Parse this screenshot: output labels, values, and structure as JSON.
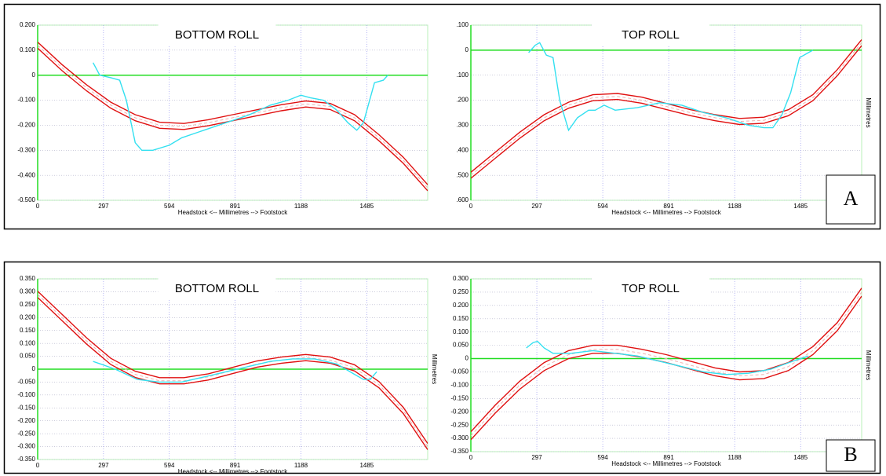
{
  "panels": [
    {
      "label": "A"
    },
    {
      "label": "B"
    }
  ],
  "chart_data": [
    {
      "type": "line",
      "title": "BOTTOM ROLL",
      "xlabel": "Headstock <-- Millimetres --> Footstock",
      "ylabel": null,
      "xlim": [
        0,
        1760
      ],
      "xticks": [
        0,
        297,
        594,
        891,
        1188,
        1485
      ],
      "ylim": [
        -0.5,
        0.2
      ],
      "yticks": [
        {
          "value": 0.2,
          "label": "0.200"
        },
        {
          "value": 0.1,
          "label": "0.100"
        },
        0,
        {
          "value": -0.1,
          "label": "-0.100"
        },
        {
          "value": -0.2,
          "label": "-0.200"
        },
        {
          "value": -0.3,
          "label": "-0.300"
        },
        {
          "value": -0.4,
          "label": "-0.400"
        },
        {
          "value": -0.5,
          "label": "-0.500"
        }
      ],
      "grid": true,
      "zero_line_color": "#22dd22",
      "series": [
        {
          "color": "#e01010",
          "x": [
            0,
            110,
            220,
            330,
            440,
            550,
            660,
            770,
            880,
            990,
            1100,
            1210,
            1320,
            1430,
            1540,
            1650,
            1760
          ],
          "values": [
            0.132,
            0.042,
            -0.038,
            -0.108,
            -0.158,
            -0.188,
            -0.193,
            -0.178,
            -0.158,
            -0.138,
            -0.118,
            -0.103,
            -0.113,
            -0.158,
            -0.238,
            -0.328,
            -0.438
          ]
        },
        {
          "color": "#e01010",
          "x": [
            0,
            110,
            220,
            330,
            440,
            550,
            660,
            770,
            880,
            990,
            1100,
            1210,
            1320,
            1430,
            1540,
            1650,
            1760
          ],
          "values": [
            0.108,
            0.018,
            -0.062,
            -0.132,
            -0.182,
            -0.212,
            -0.217,
            -0.202,
            -0.182,
            -0.162,
            -0.142,
            -0.127,
            -0.137,
            -0.182,
            -0.262,
            -0.352,
            -0.462
          ]
        },
        {
          "color": "#f0b0b0",
          "dashed": true,
          "x": [
            0,
            110,
            220,
            330,
            440,
            550,
            660,
            770,
            880,
            990,
            1100,
            1210,
            1320,
            1430,
            1540,
            1650,
            1760
          ],
          "values": [
            0.12,
            0.03,
            -0.05,
            -0.12,
            -0.17,
            -0.2,
            -0.205,
            -0.19,
            -0.17,
            -0.15,
            -0.13,
            -0.115,
            -0.125,
            -0.17,
            -0.25,
            -0.34,
            -0.45
          ]
        },
        {
          "color": "#33e0f0",
          "x": [
            250,
            280,
            330,
            370,
            400,
            440,
            470,
            520,
            594,
            650,
            750,
            850,
            950,
            1050,
            1130,
            1188,
            1230,
            1290,
            1350,
            1400,
            1440,
            1470,
            1520,
            1560,
            1580
          ],
          "values": [
            0.05,
            0,
            -0.01,
            -0.02,
            -0.1,
            -0.27,
            -0.3,
            -0.3,
            -0.28,
            -0.25,
            -0.22,
            -0.19,
            -0.16,
            -0.12,
            -0.1,
            -0.08,
            -0.09,
            -0.1,
            -0.14,
            -0.19,
            -0.22,
            -0.19,
            -0.03,
            -0.02,
            0
          ]
        }
      ]
    },
    {
      "type": "line",
      "title": "TOP ROLL",
      "xlabel": "Headstock <-- Millimetres --> Footstock",
      "ylabel": "Millimetres",
      "xlim": [
        0,
        1760
      ],
      "xticks": [
        0,
        297,
        594,
        891,
        1188,
        1485
      ],
      "ylim": [
        -0.6,
        0.1
      ],
      "yticks": [
        {
          "value": 0.1,
          "label": ".100"
        },
        0,
        {
          "value": -0.1,
          "label": ".100"
        },
        {
          "value": -0.2,
          "label": ".200"
        },
        {
          "value": -0.3,
          "label": ".300"
        },
        {
          "value": -0.4,
          "label": ".400"
        },
        {
          "value": -0.5,
          "label": ".500"
        },
        {
          "value": -0.6,
          "label": ".600"
        }
      ],
      "grid": true,
      "zero_line_color": "#22dd22",
      "series": [
        {
          "color": "#e01010",
          "x": [
            0,
            110,
            220,
            330,
            440,
            550,
            660,
            770,
            880,
            990,
            1100,
            1210,
            1320,
            1430,
            1540,
            1650,
            1760
          ],
          "values": [
            -0.488,
            -0.408,
            -0.328,
            -0.258,
            -0.208,
            -0.178,
            -0.173,
            -0.188,
            -0.213,
            -0.238,
            -0.258,
            -0.273,
            -0.268,
            -0.238,
            -0.178,
            -0.078,
            0.042
          ]
        },
        {
          "color": "#e01010",
          "x": [
            0,
            110,
            220,
            330,
            440,
            550,
            660,
            770,
            880,
            990,
            1100,
            1210,
            1320,
            1430,
            1540,
            1650,
            1760
          ],
          "values": [
            -0.512,
            -0.432,
            -0.352,
            -0.282,
            -0.232,
            -0.202,
            -0.197,
            -0.212,
            -0.237,
            -0.262,
            -0.282,
            -0.297,
            -0.292,
            -0.262,
            -0.202,
            -0.102,
            0.018
          ]
        },
        {
          "color": "#f0b0b0",
          "dashed": true,
          "x": [
            0,
            110,
            220,
            330,
            440,
            550,
            660,
            770,
            880,
            990,
            1100,
            1210,
            1320,
            1430,
            1540,
            1650,
            1760
          ],
          "values": [
            -0.5,
            -0.42,
            -0.34,
            -0.27,
            -0.22,
            -0.19,
            -0.185,
            -0.2,
            -0.225,
            -0.25,
            -0.27,
            -0.285,
            -0.28,
            -0.25,
            -0.19,
            -0.09,
            0.03
          ]
        },
        {
          "color": "#33e0f0",
          "x": [
            260,
            290,
            310,
            340,
            370,
            400,
            440,
            480,
            530,
            560,
            600,
            650,
            750,
            850,
            950,
            1050,
            1150,
            1250,
            1320,
            1360,
            1400,
            1440,
            1480,
            1520,
            1540
          ],
          "values": [
            -0.01,
            0.02,
            0.03,
            -0.02,
            -0.03,
            -0.2,
            -0.32,
            -0.27,
            -0.24,
            -0.24,
            -0.22,
            -0.24,
            -0.23,
            -0.21,
            -0.22,
            -0.25,
            -0.27,
            -0.3,
            -0.31,
            -0.31,
            -0.26,
            -0.17,
            -0.03,
            -0.01,
            0
          ]
        }
      ]
    },
    {
      "type": "line",
      "title": "BOTTOM ROLL",
      "xlabel": "Headstock <-- Millimetres --> Footstock",
      "ylabel": "Millimetres",
      "xlim": [
        0,
        1760
      ],
      "xticks": [
        0,
        297,
        594,
        891,
        1188,
        1485
      ],
      "ylim": [
        -0.35,
        0.35
      ],
      "yticks": [
        {
          "value": 0.35,
          "label": "0.350"
        },
        {
          "value": 0.3,
          "label": "0.300"
        },
        {
          "value": 0.25,
          "label": "0.250"
        },
        {
          "value": 0.2,
          "label": "0.200"
        },
        {
          "value": 0.15,
          "label": "0.150"
        },
        {
          "value": 0.1,
          "label": "0.100"
        },
        {
          "value": 0.05,
          "label": "0.050"
        },
        0,
        {
          "value": -0.05,
          "label": "-0.050"
        },
        {
          "value": -0.1,
          "label": "-0.100"
        },
        {
          "value": -0.15,
          "label": "-0.150"
        },
        {
          "value": -0.2,
          "label": "-0.200"
        },
        {
          "value": -0.25,
          "label": "-0.250"
        },
        {
          "value": -0.3,
          "label": "-0.300"
        },
        {
          "value": -0.35,
          "label": "-0.350"
        }
      ],
      "grid": true,
      "zero_line_color": "#22dd22",
      "series": [
        {
          "color": "#e01010",
          "x": [
            0,
            110,
            220,
            330,
            440,
            550,
            660,
            770,
            880,
            990,
            1100,
            1210,
            1320,
            1430,
            1540,
            1650,
            1760
          ],
          "values": [
            0.302,
            0.212,
            0.122,
            0.042,
            -0.008,
            -0.033,
            -0.033,
            -0.018,
            0.007,
            0.032,
            0.047,
            0.057,
            0.047,
            0.017,
            -0.048,
            -0.148,
            -0.288
          ]
        },
        {
          "color": "#e01010",
          "x": [
            0,
            110,
            220,
            330,
            440,
            550,
            660,
            770,
            880,
            990,
            1100,
            1210,
            1320,
            1430,
            1540,
            1650,
            1760
          ],
          "values": [
            0.278,
            0.188,
            0.098,
            0.018,
            -0.032,
            -0.057,
            -0.057,
            -0.042,
            -0.017,
            0.008,
            0.023,
            0.033,
            0.023,
            -0.007,
            -0.072,
            -0.172,
            -0.312
          ]
        },
        {
          "color": "#f0b0b0",
          "dashed": true,
          "x": [
            0,
            110,
            220,
            330,
            440,
            550,
            660,
            770,
            880,
            990,
            1100,
            1210,
            1320,
            1430,
            1540,
            1650,
            1760
          ],
          "values": [
            0.29,
            0.2,
            0.11,
            0.03,
            -0.02,
            -0.045,
            -0.045,
            -0.03,
            -0.005,
            0.02,
            0.035,
            0.045,
            0.035,
            0.005,
            -0.06,
            -0.16,
            -0.3
          ]
        },
        {
          "color": "#33e0f0",
          "x": [
            250,
            350,
            450,
            550,
            650,
            750,
            850,
            950,
            1050,
            1150,
            1250,
            1350,
            1430,
            1470,
            1500,
            1530
          ],
          "values": [
            0.03,
            0,
            -0.04,
            -0.05,
            -0.05,
            -0.03,
            -0.01,
            0.01,
            0.03,
            0.04,
            0.04,
            0.02,
            -0.02,
            -0.04,
            -0.04,
            -0.01
          ]
        }
      ]
    },
    {
      "type": "line",
      "title": "TOP ROLL",
      "xlabel": "Headstock <-- Millimetres --> Footstock",
      "ylabel": "Millimetres",
      "xlim": [
        0,
        1760
      ],
      "xticks": [
        0,
        297,
        594,
        891,
        1188,
        1485
      ],
      "ylim": [
        -0.35,
        0.3
      ],
      "yticks": [
        {
          "value": 0.3,
          "label": "0.300"
        },
        {
          "value": 0.25,
          "label": "0.250"
        },
        {
          "value": 0.2,
          "label": "0.200"
        },
        {
          "value": 0.15,
          "label": "0.150"
        },
        {
          "value": 0.1,
          "label": "0.100"
        },
        {
          "value": 0.05,
          "label": "0.050"
        },
        0,
        {
          "value": -0.05,
          "label": "-0.050"
        },
        {
          "value": -0.1,
          "label": "-0.100"
        },
        {
          "value": -0.15,
          "label": "-0.150"
        },
        {
          "value": -0.2,
          "label": "-0.200"
        },
        {
          "value": -0.25,
          "label": "-0.250"
        },
        {
          "value": -0.3,
          "label": "-0.300"
        },
        {
          "value": -0.35,
          "label": "-0.350"
        }
      ],
      "grid": true,
      "zero_line_color": "#22dd22",
      "series": [
        {
          "color": "#e01010",
          "x": [
            0,
            110,
            220,
            330,
            440,
            550,
            660,
            770,
            880,
            990,
            1100,
            1210,
            1320,
            1430,
            1540,
            1650,
            1760
          ],
          "values": [
            -0.275,
            -0.175,
            -0.085,
            -0.015,
            0.03,
            0.05,
            0.05,
            0.035,
            0.015,
            -0.01,
            -0.035,
            -0.05,
            -0.045,
            -0.015,
            0.045,
            0.135,
            0.265
          ]
        },
        {
          "color": "#e01010",
          "x": [
            0,
            110,
            220,
            330,
            440,
            550,
            660,
            770,
            880,
            990,
            1100,
            1210,
            1320,
            1430,
            1540,
            1650,
            1760
          ],
          "values": [
            -0.305,
            -0.205,
            -0.115,
            -0.045,
            0,
            0.02,
            0.02,
            0.005,
            -0.015,
            -0.04,
            -0.065,
            -0.08,
            -0.075,
            -0.045,
            0.015,
            0.105,
            0.235
          ]
        },
        {
          "color": "#f0b0b0",
          "dashed": true,
          "x": [
            0,
            110,
            220,
            330,
            440,
            550,
            660,
            770,
            880,
            990,
            1100,
            1210,
            1320,
            1430,
            1540,
            1650,
            1760
          ],
          "values": [
            -0.29,
            -0.19,
            -0.1,
            -0.03,
            0.015,
            0.035,
            0.035,
            0.02,
            0,
            -0.025,
            -0.05,
            -0.065,
            -0.06,
            -0.03,
            0.03,
            0.12,
            0.25
          ]
        },
        {
          "color": "#33e0f0",
          "x": [
            250,
            280,
            300,
            330,
            370,
            450,
            550,
            650,
            750,
            850,
            950,
            1050,
            1150,
            1250,
            1350,
            1450,
            1520
          ],
          "values": [
            0.04,
            0.06,
            0.065,
            0.04,
            0.02,
            0.02,
            0.03,
            0.02,
            0.01,
            -0.01,
            -0.03,
            -0.05,
            -0.06,
            -0.055,
            -0.04,
            -0.01,
            0.01
          ]
        }
      ]
    }
  ]
}
